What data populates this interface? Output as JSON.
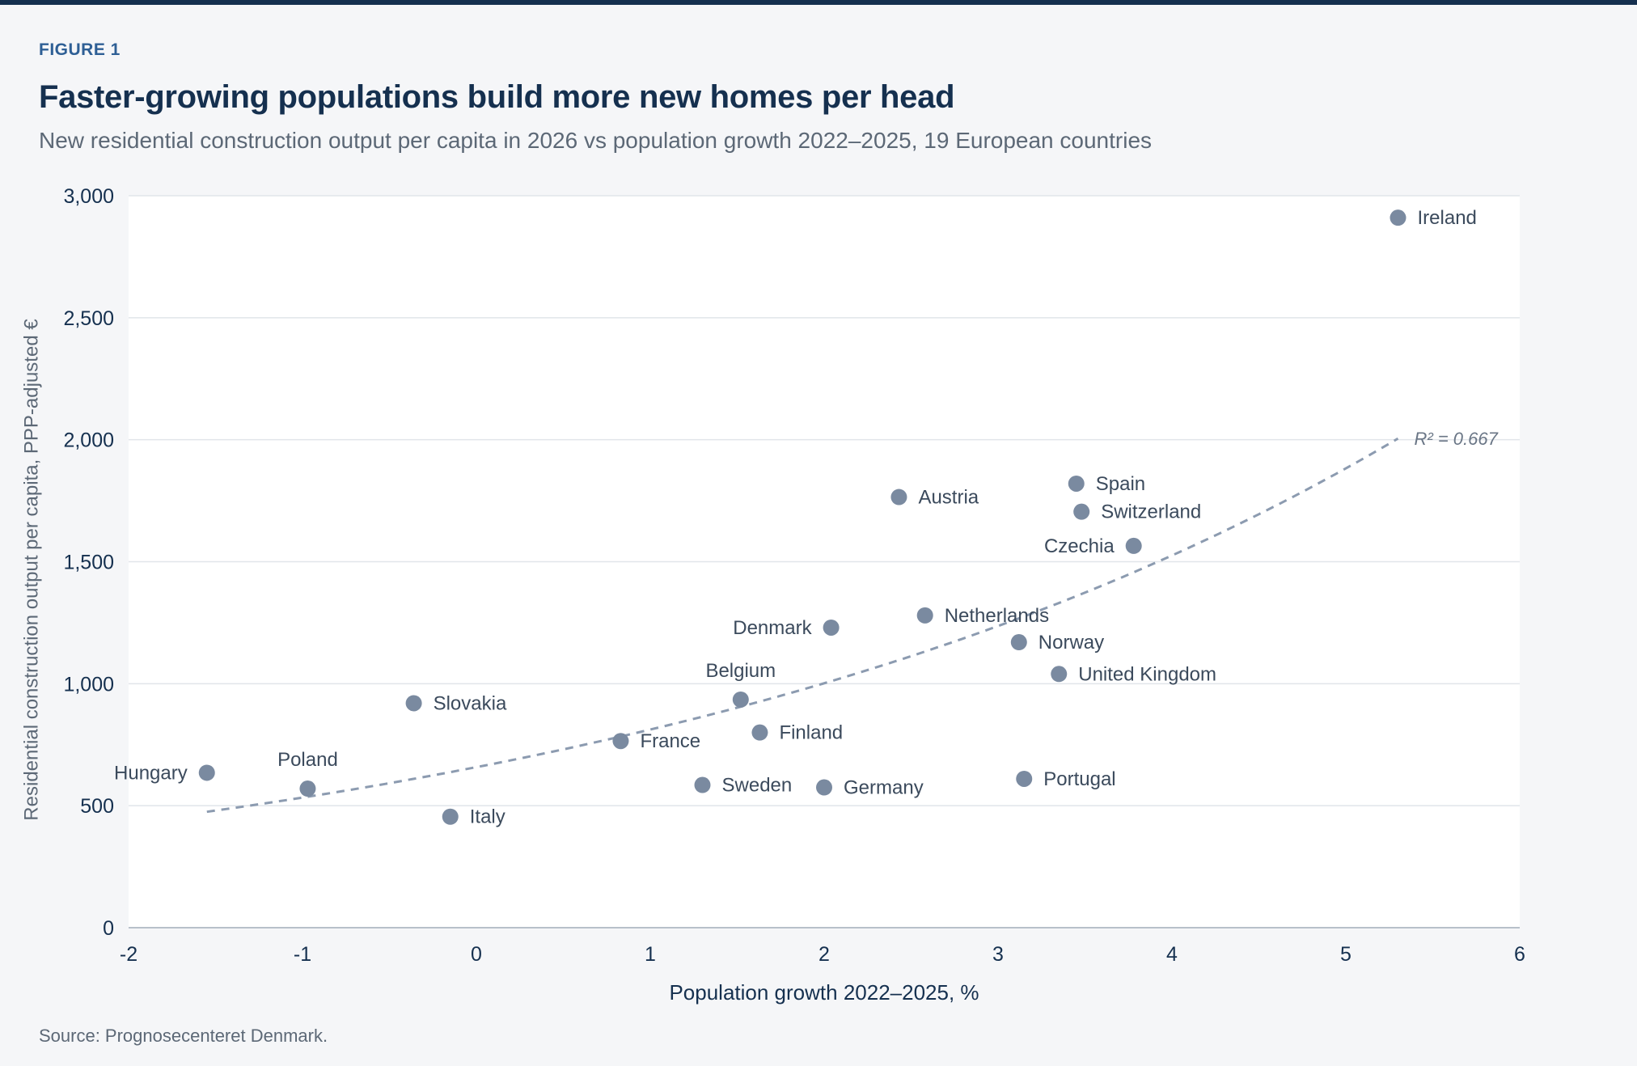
{
  "header": {
    "figure_label": "FIGURE 1",
    "title": "Faster-growing populations build more new homes per head",
    "subtitle": "New residential construction output per capita in 2026 vs population growth 2022–2025, 19 European countries"
  },
  "footer": {
    "source": "Source: Prognosecenteret Denmark."
  },
  "colors": {
    "point": "#7a8aa0",
    "trend": "#8c9bb0",
    "grid": "#e1e5ea",
    "axis": "#b8c0ca",
    "plot_bg": "#ffffff",
    "text_dark": "#15304f"
  },
  "chart_data": {
    "type": "scatter",
    "xlabel": "Population growth 2022–2025, %",
    "ylabel": "Residential construction output per capita, PPP-adjusted €",
    "xlim": [
      -2,
      6
    ],
    "ylim": [
      0,
      3000
    ],
    "x_ticks": [
      -2,
      -1,
      0,
      1,
      2,
      3,
      4,
      5,
      6
    ],
    "x_tick_labels": [
      "-2",
      "-1",
      "0",
      "1",
      "2",
      "3",
      "4",
      "5",
      "6"
    ],
    "y_ticks": [
      0,
      500,
      1000,
      1500,
      2000,
      2500,
      3000
    ],
    "y_tick_labels": [
      "0",
      "500",
      "1,000",
      "1,500",
      "2,000",
      "2,500",
      "3,000"
    ],
    "grid": "horizontal",
    "points": [
      {
        "label": "Ireland",
        "x": 5.3,
        "y": 2910,
        "label_pos": "right"
      },
      {
        "label": "Spain",
        "x": 3.45,
        "y": 1820,
        "label_pos": "right"
      },
      {
        "label": "Austria",
        "x": 2.43,
        "y": 1765,
        "label_pos": "right"
      },
      {
        "label": "Switzerland",
        "x": 3.48,
        "y": 1705,
        "label_pos": "right"
      },
      {
        "label": "Czechia",
        "x": 3.78,
        "y": 1565,
        "label_pos": "left"
      },
      {
        "label": "Netherlands",
        "x": 2.58,
        "y": 1280,
        "label_pos": "right"
      },
      {
        "label": "Denmark",
        "x": 2.04,
        "y": 1230,
        "label_pos": "left"
      },
      {
        "label": "Norway",
        "x": 3.12,
        "y": 1170,
        "label_pos": "right"
      },
      {
        "label": "United Kingdom",
        "x": 3.35,
        "y": 1040,
        "label_pos": "right"
      },
      {
        "label": "Belgium",
        "x": 1.52,
        "y": 935,
        "label_pos": "top"
      },
      {
        "label": "Slovakia",
        "x": -0.36,
        "y": 920,
        "label_pos": "right"
      },
      {
        "label": "Finland",
        "x": 1.63,
        "y": 800,
        "label_pos": "right"
      },
      {
        "label": "France",
        "x": 0.83,
        "y": 765,
        "label_pos": "right"
      },
      {
        "label": "Hungary",
        "x": -1.55,
        "y": 635,
        "label_pos": "left"
      },
      {
        "label": "Portugal",
        "x": 3.15,
        "y": 610,
        "label_pos": "right"
      },
      {
        "label": "Sweden",
        "x": 1.3,
        "y": 585,
        "label_pos": "right"
      },
      {
        "label": "Germany",
        "x": 2.0,
        "y": 575,
        "label_pos": "right"
      },
      {
        "label": "Poland",
        "x": -0.97,
        "y": 570,
        "label_pos": "top"
      },
      {
        "label": "Italy",
        "x": -0.15,
        "y": 455,
        "label_pos": "right"
      }
    ],
    "trendline": {
      "type": "exponential",
      "label": "R² = 0.667",
      "x_range": [
        -1.55,
        5.3
      ],
      "y_start": 475,
      "y_end": 2005
    }
  }
}
